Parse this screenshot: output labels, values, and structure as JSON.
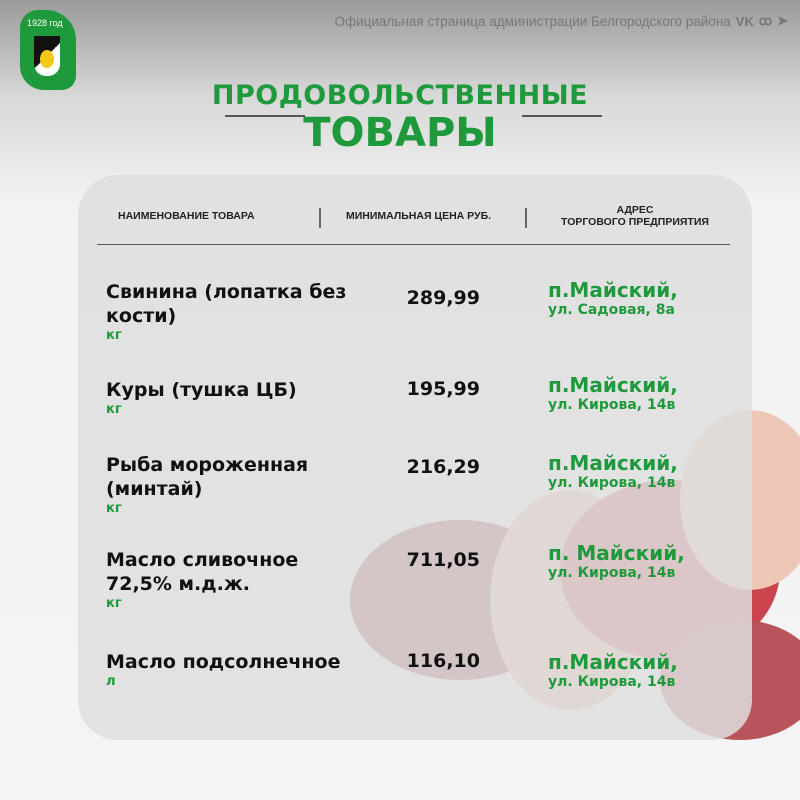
{
  "header": {
    "logo_year": "1928 год",
    "site_title": "Официальная страница администрации Белгородского района",
    "social_icons": [
      "vk-icon",
      "odnoklassniki-icon",
      "telegram-icon"
    ]
  },
  "title": {
    "line1": "ПРОДОВОЛЬСТВЕННЫЕ",
    "line2": "ТОВАРЫ"
  },
  "table": {
    "columns": [
      "НАИМЕНОВАНИЕ ТОВАРА",
      "МИНИМАЛЬНАЯ ЦЕНА РУБ.",
      "АДРЕС",
      "ТОРГОВОГО ПРЕДПРИЯТИЯ"
    ],
    "rows": [
      {
        "name": "Свинина (лопатка без кости)",
        "unit": "кг",
        "price": "289,99",
        "city": "п.Майский,",
        "street": "ул. Садовая, 8а"
      },
      {
        "name": "Куры (тушка ЦБ)",
        "unit": "кг",
        "price": "195,99",
        "city": "п.Майский,",
        "street": "ул. Кирова, 14в"
      },
      {
        "name": "Рыба мороженная (минтай)",
        "unit": "кг",
        "price": "216,29",
        "city": "п.Майский,",
        "street": "ул. Кирова, 14в"
      },
      {
        "name": "Масло сливочное 72,5% м.д.ж.",
        "unit": "кг",
        "price": "711,05",
        "city": "п. Майский,",
        "street": "ул. Кирова, 14в"
      },
      {
        "name": "Масло подсолнечное",
        "unit": "л",
        "price": "116,10",
        "city": "п.Майский,",
        "street": "ул. Кирова, 14в"
      }
    ]
  },
  "colors": {
    "accent": "#1e9a3c"
  }
}
